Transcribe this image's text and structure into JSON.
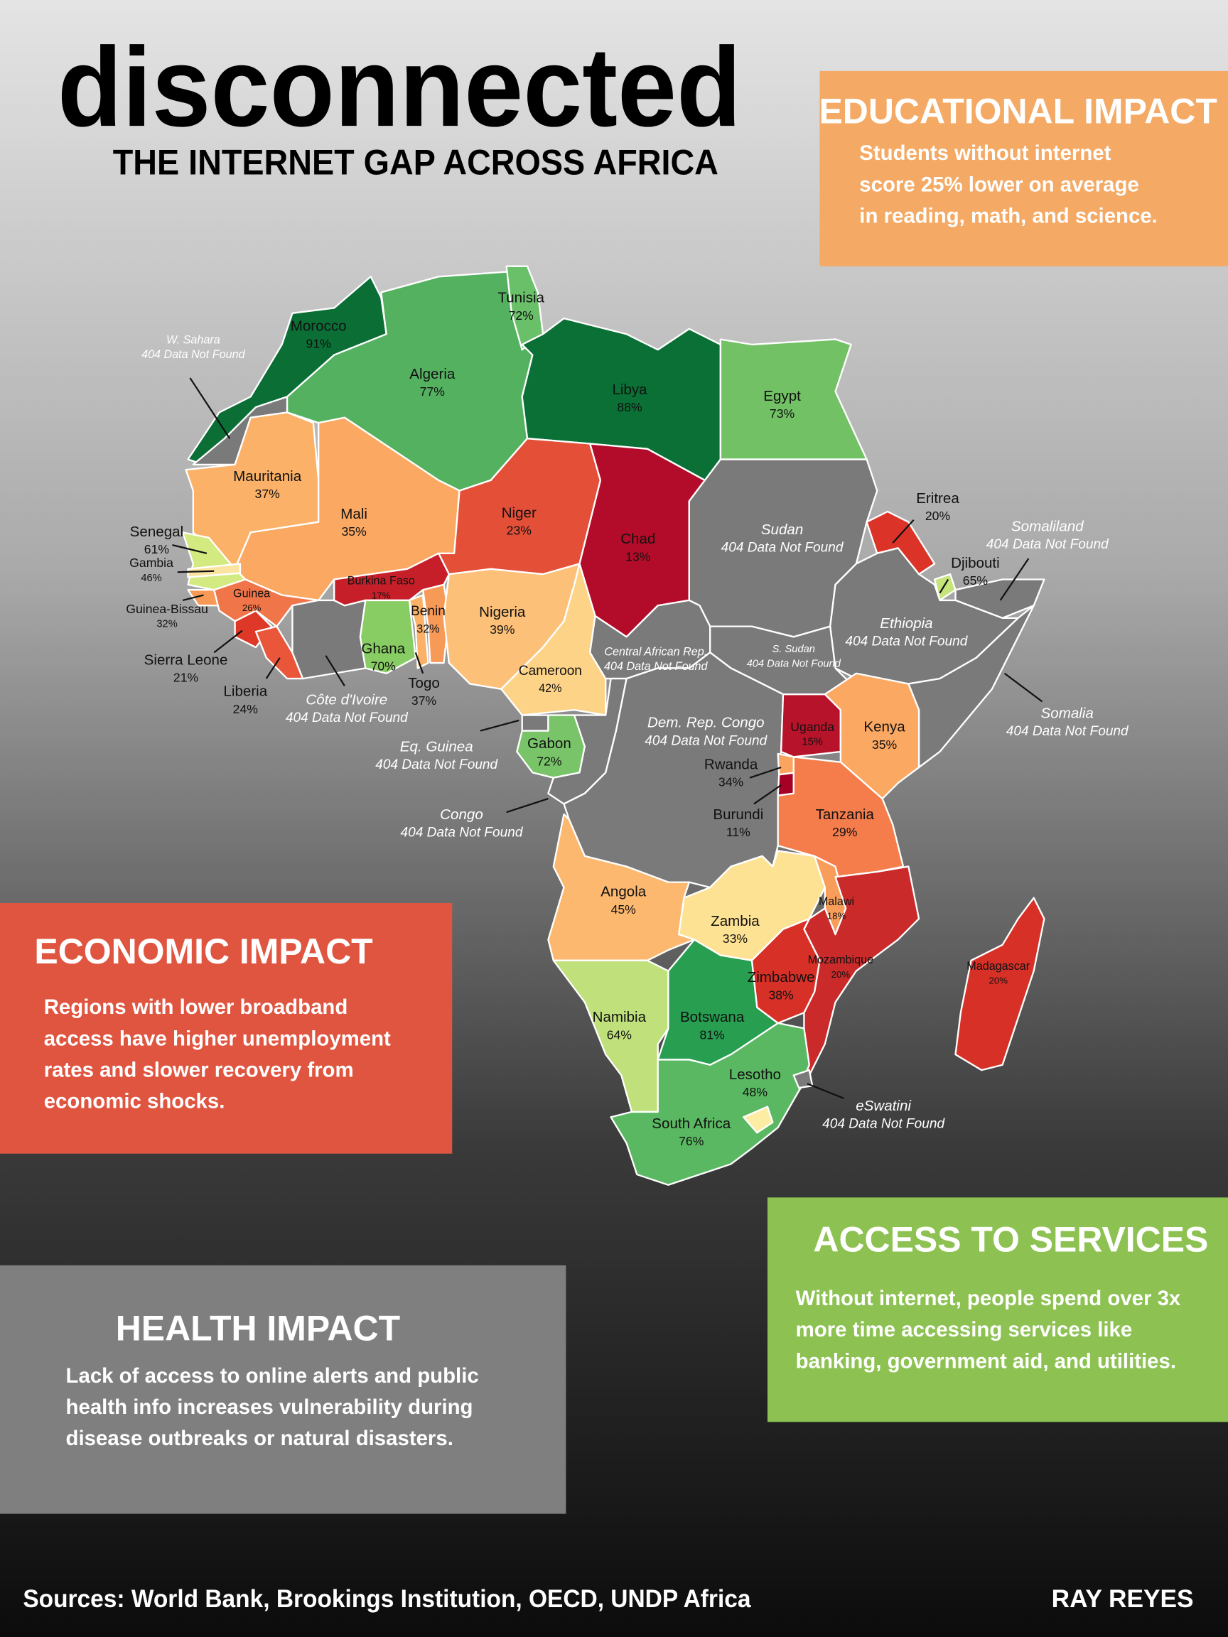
{
  "header": {
    "title": "disconnected",
    "subtitle": "THE INTERNET GAP ACROSS AFRICA"
  },
  "panels": [
    {
      "title": "EDUCATIONAL IMPACT",
      "lines": [
        "Students without internet",
        "score 25% lower on average",
        "in reading, math, and science."
      ],
      "color": "#f4a964"
    },
    {
      "title": "ECONOMIC IMPACT",
      "lines": [
        "Regions with lower broadband",
        "access have higher unemployment",
        "rates and slower recovery from",
        "economic shocks."
      ],
      "color": "#e05540"
    },
    {
      "title": "HEALTH IMPACT",
      "lines": [
        "Lack of access to online alerts and public",
        "health info increases vulnerability during",
        "disease outbreaks or natural disasters."
      ],
      "color": "#7f7f7f"
    },
    {
      "title": "ACCESS TO SERVICES",
      "lines": [
        "Without internet, people spend over 3x",
        "more time accessing services like",
        "banking, government aid, and utilities."
      ],
      "color": "#8dc252"
    }
  ],
  "map": {
    "countries": [
      {
        "name": "Morocco",
        "label": "91%",
        "color": "#0b6e35"
      },
      {
        "name": "W. Sahara",
        "label": "404 Data Not Found",
        "color": "#7a7a7a"
      },
      {
        "name": "Algeria",
        "label": "77%",
        "color": "#54b160"
      },
      {
        "name": "Tunisia",
        "label": "72%",
        "color": "#6abf69"
      },
      {
        "name": "Libya",
        "label": "88%",
        "color": "#0a7035"
      },
      {
        "name": "Egypt",
        "label": "73%",
        "color": "#72c165"
      },
      {
        "name": "Mauritania",
        "label": "37%",
        "color": "#fbb167"
      },
      {
        "name": "Mali",
        "label": "35%",
        "color": "#fba863"
      },
      {
        "name": "Niger",
        "label": "23%",
        "color": "#e44f38"
      },
      {
        "name": "Chad",
        "label": "13%",
        "color": "#b30c2a"
      },
      {
        "name": "Sudan",
        "label": "404 Data Not Found",
        "color": "#7a7a7a"
      },
      {
        "name": "Eritrea",
        "label": "20%",
        "color": "#db3328"
      },
      {
        "name": "Djibouti",
        "label": "65%",
        "color": "#c5e47b"
      },
      {
        "name": "Somaliland",
        "label": "404 Data Not Found",
        "color": "#7a7a7a"
      },
      {
        "name": "Ethiopia",
        "label": "404 Data Not Found",
        "color": "#7a7a7a"
      },
      {
        "name": "Somalia",
        "label": "404 Data Not Found",
        "color": "#7a7a7a"
      },
      {
        "name": "Senegal",
        "label": "61%",
        "color": "#d2ea7f"
      },
      {
        "name": "Gambia",
        "label": "46%",
        "color": "#fbe4a0"
      },
      {
        "name": "Guinea-Bissau",
        "label": "32%",
        "color": "#f89a57"
      },
      {
        "name": "Guinea",
        "label": "26%",
        "color": "#f07549"
      },
      {
        "name": "Sierra Leone",
        "label": "21%",
        "color": "#dd3828"
      },
      {
        "name": "Liberia",
        "label": "24%",
        "color": "#e9563a"
      },
      {
        "name": "Côte d'Ivoire",
        "label": "404 Data Not Found",
        "color": "#7a7a7a"
      },
      {
        "name": "Burkina Faso",
        "label": "17%",
        "color": "#c61f2a"
      },
      {
        "name": "Ghana",
        "label": "70%",
        "color": "#88cc64"
      },
      {
        "name": "Togo",
        "label": "37%",
        "color": "#fbb167"
      },
      {
        "name": "Benin",
        "label": "32%",
        "color": "#f89a57"
      },
      {
        "name": "Nigeria",
        "label": "39%",
        "color": "#fcc079"
      },
      {
        "name": "Cameroon",
        "label": "42%",
        "color": "#fdd387"
      },
      {
        "name": "Central African Rep.",
        "label": "404 Data Not Found",
        "color": "#7a7a7a"
      },
      {
        "name": "S. Sudan",
        "label": "404 Data Not Found",
        "color": "#7a7a7a"
      },
      {
        "name": "Eq. Guinea",
        "label": "404 Data Not Found",
        "color": "#7a7a7a"
      },
      {
        "name": "Gabon",
        "label": "72%",
        "color": "#79c468"
      },
      {
        "name": "Congo",
        "label": "404 Data Not Found",
        "color": "#7a7a7a"
      },
      {
        "name": "Dem. Rep. Congo",
        "label": "404 Data Not Found",
        "color": "#7a7a7a"
      },
      {
        "name": "Uganda",
        "label": "15%",
        "color": "#b7132a"
      },
      {
        "name": "Kenya",
        "label": "35%",
        "color": "#fba863"
      },
      {
        "name": "Rwanda",
        "label": "34%",
        "color": "#faa45f"
      },
      {
        "name": "Burundi",
        "label": "11%",
        "color": "#a50026"
      },
      {
        "name": "Tanzania",
        "label": "29%",
        "color": "#f47d4b"
      },
      {
        "name": "Angola",
        "label": "45%",
        "color": "#fee293"
      },
      {
        "name": "Zambia",
        "label": "33%",
        "color": "#f99d5b"
      },
      {
        "name": "Malawi",
        "label": "18%",
        "color": "#cb2a2a"
      },
      {
        "name": "Mozambique",
        "label": "20%",
        "color": "#d73027"
      },
      {
        "name": "Zimbabwe",
        "label": "38%",
        "color": "#fcb86f"
      },
      {
        "name": "Namibia",
        "label": "64%",
        "color": "#bfe07a"
      },
      {
        "name": "Botswana",
        "label": "81%",
        "color": "#279e50"
      },
      {
        "name": "South Africa",
        "label": "76%",
        "color": "#5ab862"
      },
      {
        "name": "Lesotho",
        "label": "48%",
        "color": "#fdeca4"
      },
      {
        "name": "eSwatini",
        "label": "404 Data Not Found",
        "color": "#7a7a7a"
      },
      {
        "name": "Madagascar",
        "label": "20%",
        "color": "#d73027"
      }
    ]
  },
  "footer": {
    "sources": "Sources: World Bank, Brookings Institution, OECD, UNDP Africa",
    "author": "RAY REYES"
  }
}
